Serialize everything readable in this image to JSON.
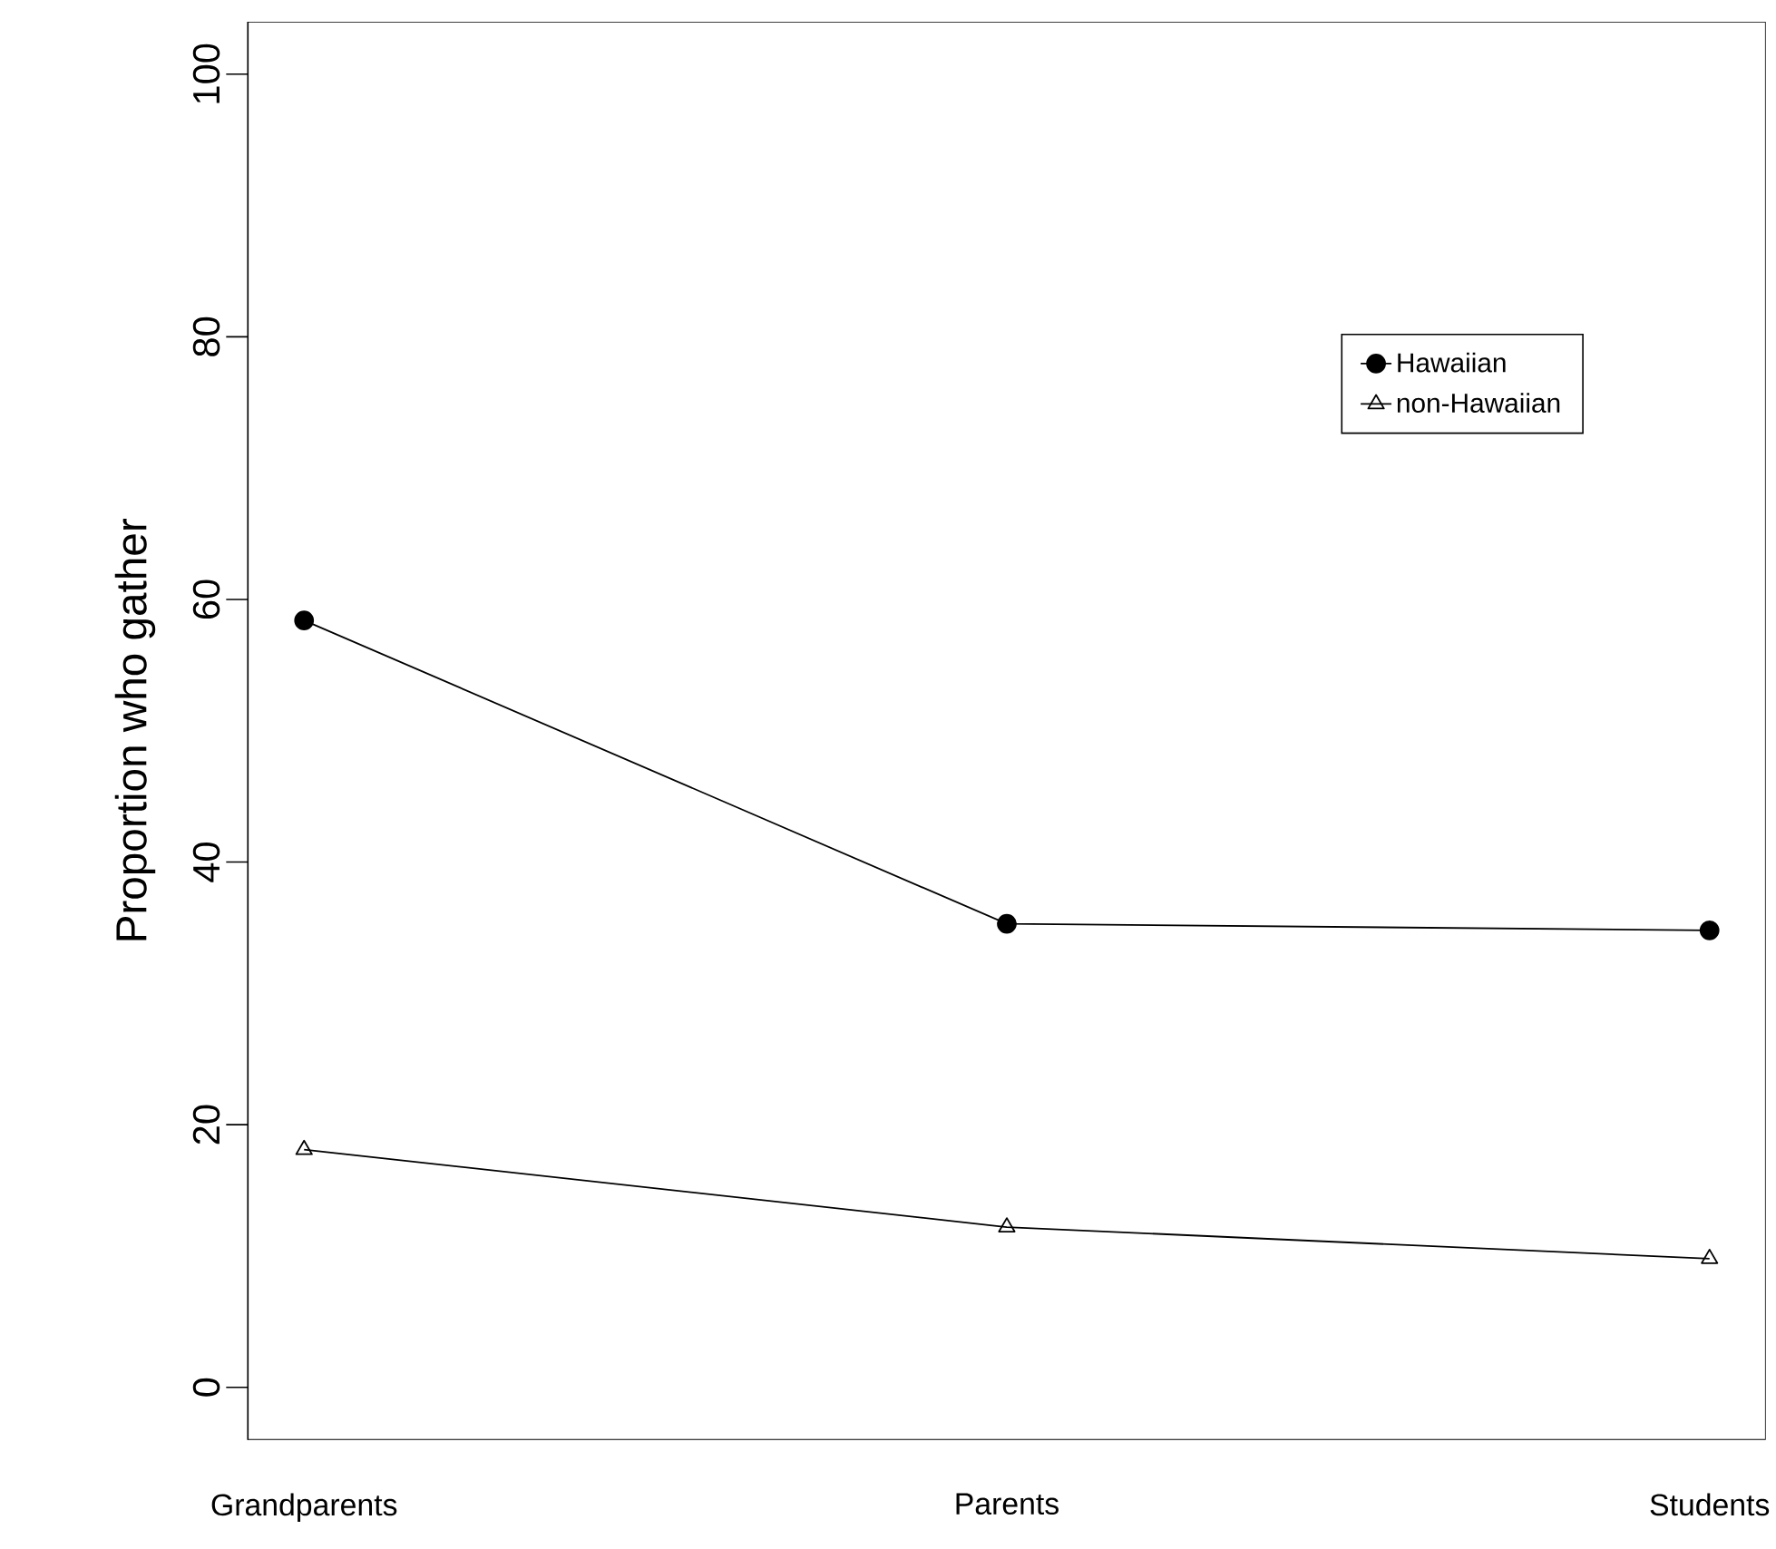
{
  "chart_data": {
    "type": "line",
    "ylabel": "Proportion who gather",
    "categories": [
      "Grandparents",
      "Parents",
      "Students"
    ],
    "series": [
      {
        "name": "Hawaiian",
        "color": "#000000",
        "marker": "circle",
        "values": [
          58.4,
          35.3,
          34.8
        ]
      },
      {
        "name": "non-Hawaiian",
        "color": "#000000",
        "marker": "triangle",
        "values": [
          18.1,
          12.2,
          9.8
        ]
      }
    ],
    "ylim": [
      -4,
      104
    ],
    "yticks": [
      0,
      20,
      40,
      60,
      80,
      100
    ],
    "grid": false,
    "legend": "top right",
    "line_style": "solid"
  }
}
